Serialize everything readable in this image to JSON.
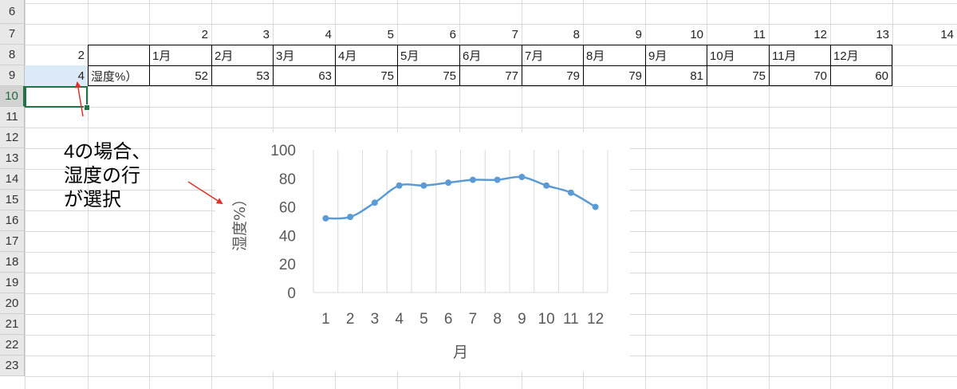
{
  "row_numbers": [
    "6",
    "7",
    "8",
    "9",
    "10",
    "11",
    "12",
    "13",
    "14",
    "15",
    "16",
    "17",
    "18",
    "19",
    "20",
    "21",
    "22",
    "23"
  ],
  "selected_row": "10",
  "row7_values": [
    "2",
    "3",
    "4",
    "5",
    "6",
    "7",
    "8",
    "9",
    "10",
    "11",
    "12",
    "13",
    "14"
  ],
  "row8": {
    "first": "2",
    "months": [
      "1月",
      "2月",
      "3月",
      "4月",
      "5月",
      "6月",
      "7月",
      "8月",
      "9月",
      "10月",
      "11月",
      "12月"
    ]
  },
  "row9": {
    "first": "4",
    "label": "湿度%）",
    "values": [
      "52",
      "53",
      "63",
      "75",
      "75",
      "77",
      "79",
      "79",
      "81",
      "75",
      "70",
      "60"
    ]
  },
  "annotation": {
    "lines": [
      "4の場合、",
      "湿度の行",
      "が選択"
    ]
  },
  "colors": {
    "series": "#5b9bd5",
    "selection": "#217346",
    "highlight": "#dce9f6",
    "arrow": "#e0302a"
  },
  "chart_data": {
    "type": "line",
    "categories": [
      "1",
      "2",
      "3",
      "4",
      "5",
      "6",
      "7",
      "8",
      "9",
      "10",
      "11",
      "12"
    ],
    "values": [
      52,
      53,
      63,
      75,
      75,
      77,
      79,
      79,
      81,
      75,
      70,
      60
    ],
    "ylabel": "湿度%）",
    "xlabel": "月",
    "ylim": [
      0,
      100
    ],
    "yticks": [
      "0",
      "20",
      "40",
      "60",
      "80",
      "100"
    ],
    "grid": "vertical",
    "legend": "none"
  }
}
